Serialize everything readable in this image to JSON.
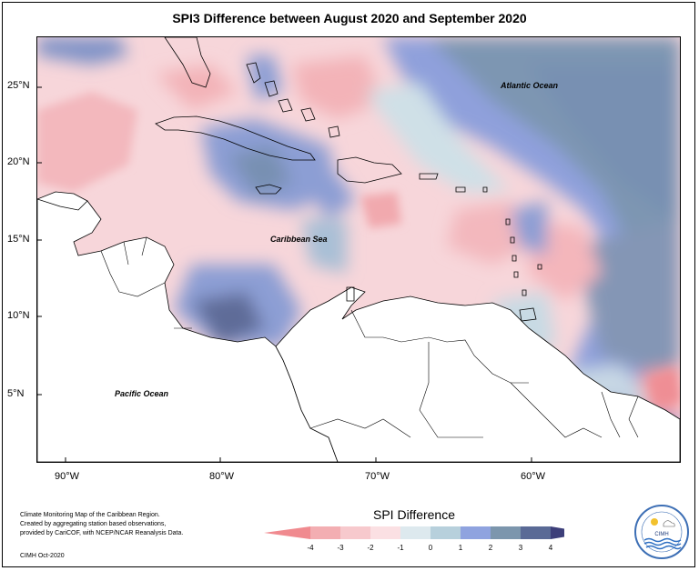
{
  "title": "SPI3 Difference between August 2020 and September 2020",
  "lat_labels": [
    "25°N",
    "20°N",
    "15°N",
    "10°N",
    "5°N"
  ],
  "lon_labels": [
    "90°W",
    "80°W",
    "70°W",
    "60°W"
  ],
  "map_labels": {
    "atlantic": "Atlantic Ocean",
    "caribbean": "Caribbean Sea",
    "pacific": "Pacific Ocean"
  },
  "credit": {
    "line1": "Climate Monitoring Map of the Caribbean Region.",
    "line2": "Created by aggregating station based observations,",
    "line3": "provided by CariCOF, with NCEP/NCAR Reanalysis Data.",
    "date": "CIMH Oct-2020"
  },
  "legend": {
    "title": "SPI Difference",
    "ticks": [
      "-4",
      "-3",
      "-2",
      "-1",
      "0",
      "1",
      "2",
      "3",
      "4"
    ],
    "colors": [
      "#f08a8f",
      "#f3aeb2",
      "#f7c9cd",
      "#fbe0e3",
      "#dde9ee",
      "#b7d0dc",
      "#8fa3df",
      "#7c96ad",
      "#5a6a96",
      "#3d3f7a"
    ]
  },
  "logo": {
    "text": "CIMH"
  }
}
